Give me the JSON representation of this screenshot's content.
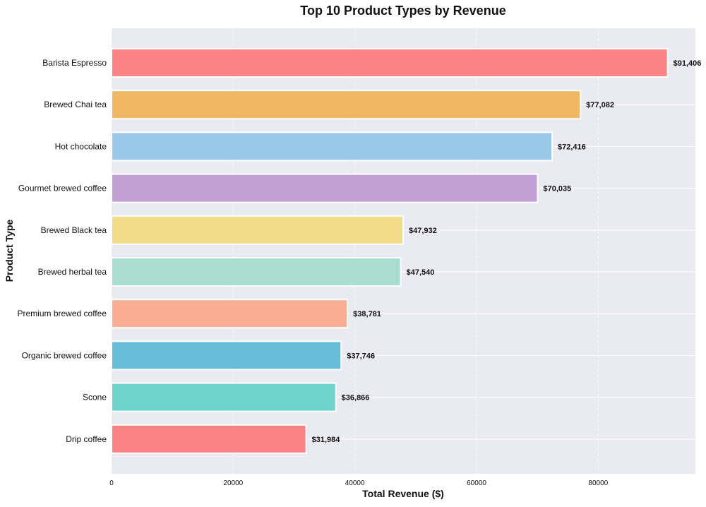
{
  "chart_data": {
    "type": "bar",
    "orientation": "horizontal",
    "title": "Top 10 Product Types by Revenue",
    "xlabel": "Total Revenue ($)",
    "ylabel": "Product Type",
    "xlim": [
      0,
      95976
    ],
    "xticks": [
      0,
      20000,
      40000,
      60000,
      80000
    ],
    "xtick_labels": [
      "0",
      "20000",
      "40000",
      "60000",
      "80000"
    ],
    "grid": true,
    "categories": [
      "Barista Espresso",
      "Brewed Chai tea",
      "Hot chocolate",
      "Gourmet brewed coffee",
      "Brewed Black tea",
      "Brewed herbal tea",
      "Premium brewed coffee",
      "Organic brewed coffee",
      "Scone",
      "Drip coffee"
    ],
    "values": [
      91406,
      77082,
      72416,
      70035,
      47932,
      47540,
      38781,
      37746,
      36866,
      31984
    ],
    "data_labels": [
      "$91,406",
      "$77,082",
      "$72,416",
      "$70,035",
      "$47,932",
      "$47,540",
      "$38,781",
      "$37,746",
      "$36,866",
      "$31,984"
    ],
    "colors": [
      "#FC8383",
      "#F0B862",
      "#9AC8E8",
      "#C3A0D4",
      "#F2DC88",
      "#A8DDCF",
      "#F9AE93",
      "#66BFD6",
      "#6DD3CB",
      "#FC8383"
    ]
  }
}
